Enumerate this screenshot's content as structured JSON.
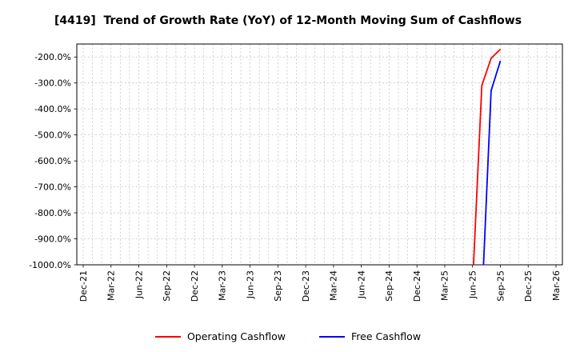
{
  "chart_data": {
    "type": "line",
    "title": "[4419]  Trend of Growth Rate (YoY) of 12-Month Moving Sum of Cashflows",
    "x_axis": {
      "tick_labels": [
        "Dec-21",
        "Mar-22",
        "Jun-22",
        "Sep-22",
        "Dec-22",
        "Mar-23",
        "Jun-23",
        "Sep-23",
        "Dec-23",
        "Mar-24",
        "Jun-24",
        "Sep-24",
        "Dec-24",
        "Mar-25",
        "Jun-25",
        "Sep-25",
        "Dec-25",
        "Mar-26"
      ],
      "tick_month_index": [
        0,
        3,
        6,
        9,
        12,
        15,
        18,
        21,
        24,
        27,
        30,
        33,
        36,
        39,
        42,
        45,
        48,
        51
      ],
      "month_domain": [
        0,
        51
      ],
      "minor_grid": "monthly"
    },
    "y_axis": {
      "tick_labels": [
        "-200.0%",
        "-300.0%",
        "-400.0%",
        "-500.0%",
        "-600.0%",
        "-700.0%",
        "-800.0%",
        "-900.0%",
        "-1000.0%"
      ],
      "tick_values": [
        -200,
        -300,
        -400,
        -500,
        -600,
        -700,
        -800,
        -900,
        -1000
      ],
      "ylim": [
        -1000,
        -150
      ],
      "unit": "%"
    },
    "grid": {
      "style": "dashed",
      "color": "#c8c8c8"
    },
    "legend_position": "bottom_center",
    "series": [
      {
        "name": "Operating Cashflow",
        "color": "#ff0000",
        "points": [
          {
            "month": "Jun-25",
            "m": 42,
            "value": -1080
          },
          {
            "month": "Jul-25",
            "m": 43,
            "value": -310
          },
          {
            "month": "Aug-25",
            "m": 44,
            "value": -205
          },
          {
            "month": "Sep-25",
            "m": 45,
            "value": -170
          }
        ]
      },
      {
        "name": "Free Cashflow",
        "color": "#0000ff",
        "points": [
          {
            "month": "Jul-25",
            "m": 43,
            "value": -1150
          },
          {
            "month": "Aug-25",
            "m": 44,
            "value": -330
          },
          {
            "month": "Sep-25",
            "m": 45,
            "value": -215
          }
        ]
      }
    ]
  }
}
